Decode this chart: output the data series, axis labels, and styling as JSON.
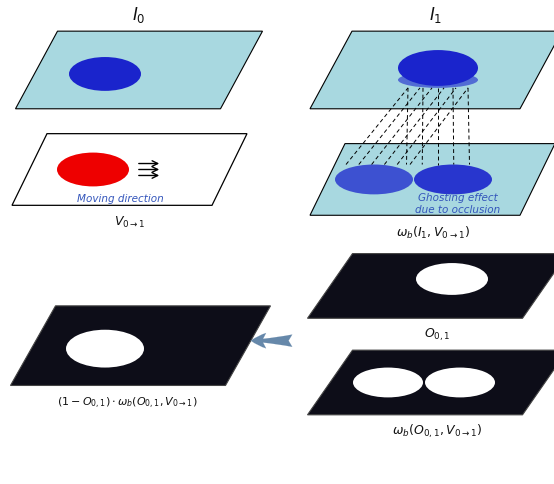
{
  "bg_color": "#ffffff",
  "light_blue": "#a8d8e0",
  "dark_blue": "#1a24cc",
  "red_color": "#ee0000",
  "black_plane": "#0d0d18",
  "arrow_color": "#6688aa",
  "text_color_blue": "#3355bb",
  "text_color_dark": "#111111",
  "title_I0": "$I_0$",
  "title_I1": "$I_1$",
  "label_V01": "$V_{0\\rightarrow1}$",
  "label_wb_I1": "$\\omega_b(I_1, V_{0\\rightarrow1})$",
  "label_result": "$(1-O_{0,1})\\cdot\\omega_b(O_{0,1}, V_{0\\rightarrow1})$",
  "label_O01": "$O_{0,1}$",
  "label_wb_O01": "$\\omega_b(O_{0,1}, V_{0\\rightarrow1})$",
  "moving_dir_text": "Moving direction",
  "ghosting_text": "Ghosting effect\ndue to occlusion"
}
